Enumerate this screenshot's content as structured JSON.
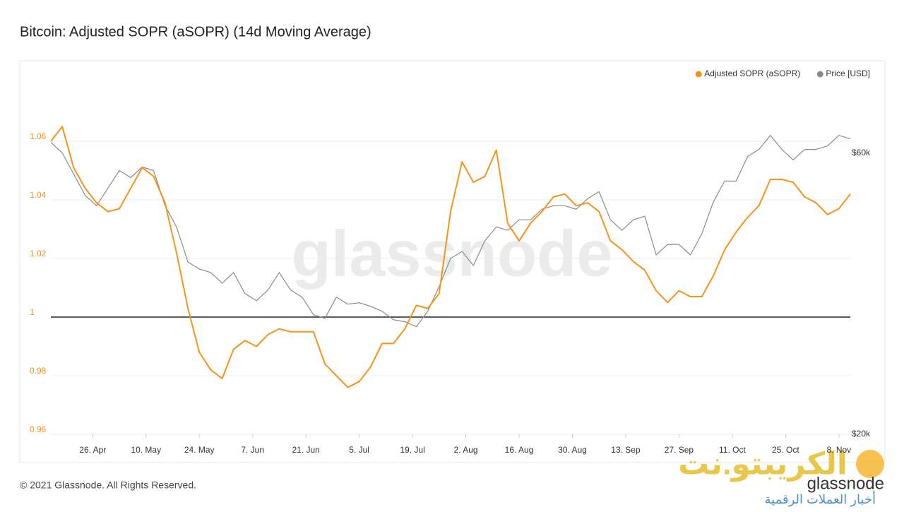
{
  "chart_data": {
    "type": "line",
    "title": "Bitcoin: Adjusted SOPR (aSOPR) (14d Moving Average)",
    "footer": "© 2021 Glassnode. All Rights Reserved.",
    "watermark": "glassnode",
    "logo": {
      "name": "الكريبتو.نت",
      "brand": "glassnode",
      "tagline": "أخبار العملات الرقمية"
    },
    "x": [
      "15. Apr",
      "18. Apr",
      "21. Apr",
      "24. Apr",
      "27. Apr",
      "30. Apr",
      "3. May",
      "6. May",
      "9. May",
      "12. May",
      "15. May",
      "18. May",
      "21. May",
      "24. May",
      "27. May",
      "30. May",
      "2. Jun",
      "5. Jun",
      "8. Jun",
      "11. Jun",
      "14. Jun",
      "17. Jun",
      "20. Jun",
      "23. Jun",
      "26. Jun",
      "29. Jun",
      "2. Jul",
      "5. Jul",
      "8. Jul",
      "11. Jul",
      "14. Jul",
      "17. Jul",
      "20. Jul",
      "23. Jul",
      "26. Jul",
      "29. Jul",
      "1. Aug",
      "4. Aug",
      "7. Aug",
      "10. Aug",
      "13. Aug",
      "16. Aug",
      "19. Aug",
      "22. Aug",
      "25. Aug",
      "28. Aug",
      "31. Aug",
      "3. Sep",
      "6. Sep",
      "9. Sep",
      "12. Sep",
      "15. Sep",
      "18. Sep",
      "21. Sep",
      "24. Sep",
      "27. Sep",
      "30. Sep",
      "3. Oct",
      "6. Oct",
      "9. Oct",
      "12. Oct",
      "15. Oct",
      "18. Oct",
      "21. Oct",
      "24. Oct",
      "27. Oct",
      "30. Oct",
      "2. Nov",
      "5. Nov",
      "8. Nov",
      "11. Nov"
    ],
    "xticks": [
      "26. Apr",
      "10. May",
      "24. May",
      "7. Jun",
      "21. Jun",
      "5. Jul",
      "19. Jul",
      "2. Aug",
      "16. Aug",
      "30. Aug",
      "13. Sep",
      "27. Sep",
      "11. Oct",
      "25. Oct",
      "8. Nov"
    ],
    "xlim": [
      "15. Apr",
      "11. Nov"
    ],
    "series": [
      {
        "name": "Adjusted SOPR (aSOPR)",
        "color": "#f7931a",
        "axis": "y",
        "values": [
          1.06,
          1.065,
          1.051,
          1.044,
          1.039,
          1.036,
          1.037,
          1.044,
          1.051,
          1.048,
          1.039,
          1.022,
          1.003,
          0.988,
          0.982,
          0.979,
          0.989,
          0.992,
          0.99,
          0.994,
          0.996,
          0.995,
          0.995,
          0.995,
          0.984,
          0.98,
          0.976,
          0.978,
          0.983,
          0.991,
          0.991,
          0.996,
          1.004,
          1.003,
          1.008,
          1.036,
          1.053,
          1.046,
          1.048,
          1.057,
          1.032,
          1.026,
          1.032,
          1.036,
          1.041,
          1.042,
          1.038,
          1.039,
          1.036,
          1.026,
          1.023,
          1.019,
          1.016,
          1.009,
          1.005,
          1.009,
          1.007,
          1.007,
          1.014,
          1.023,
          1.029,
          1.034,
          1.038,
          1.047,
          1.047,
          1.046,
          1.041,
          1.039,
          1.035,
          1.037,
          1.042
        ]
      },
      {
        "name": "Price [USD]",
        "color": "#8a8a8a",
        "axis": "y2",
        "values": [
          61500,
          60000,
          57000,
          54000,
          52500,
          55000,
          57500,
          56500,
          58000,
          57500,
          52500,
          49500,
          44500,
          43500,
          43000,
          41500,
          43000,
          40000,
          39000,
          40500,
          43000,
          40500,
          39500,
          37000,
          36500,
          39500,
          38500,
          38700,
          38200,
          37500,
          36300,
          36000,
          35300,
          37500,
          41000,
          45000,
          46000,
          44000,
          47500,
          49500,
          49000,
          50500,
          50500,
          52000,
          52500,
          52500,
          52000,
          53500,
          54500,
          50500,
          49000,
          50500,
          51000,
          45500,
          47000,
          47000,
          45500,
          48500,
          53000,
          56000,
          56000,
          59500,
          60500,
          62500,
          60500,
          59000,
          60500,
          60500,
          61000,
          62500,
          62000
        ]
      }
    ],
    "ylim": [
      0.96,
      1.08
    ],
    "yticks": [
      0.96,
      0.98,
      1,
      1.02,
      1.04,
      1.06
    ],
    "y2lim": [
      20000,
      70000
    ],
    "y2ticks": [
      {
        "value": 20000,
        "label": "$20k"
      },
      {
        "value": 60000,
        "label": "$60k"
      }
    ],
    "baseline": 1,
    "grid": true,
    "legend": "top-right"
  }
}
